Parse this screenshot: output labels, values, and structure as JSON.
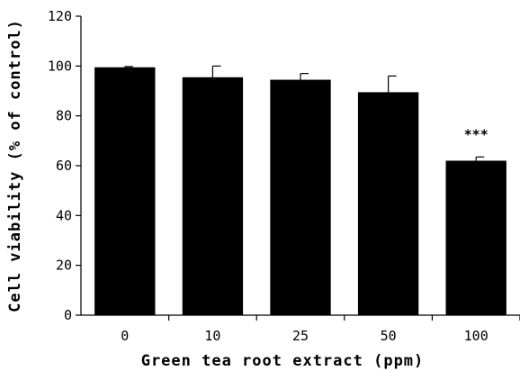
{
  "chart_data": {
    "type": "bar",
    "title": "",
    "xlabel": "Green tea root extract (ppm)",
    "ylabel": "Cell viability (% of control)",
    "categories": [
      "0",
      "10",
      "25",
      "50",
      "100"
    ],
    "values": [
      99.5,
      95.5,
      94.5,
      89.5,
      62
    ],
    "error_upper": [
      0.3,
      4.5,
      2.5,
      6.5,
      1.5
    ],
    "annotations": [
      {
        "category": "100",
        "text": "***"
      }
    ],
    "ylim": [
      0,
      120
    ],
    "yticks": [
      "0",
      "20",
      "40",
      "60",
      "80",
      "100",
      "120"
    ],
    "grid": false,
    "legend": "none",
    "bar_color": "#000000"
  }
}
